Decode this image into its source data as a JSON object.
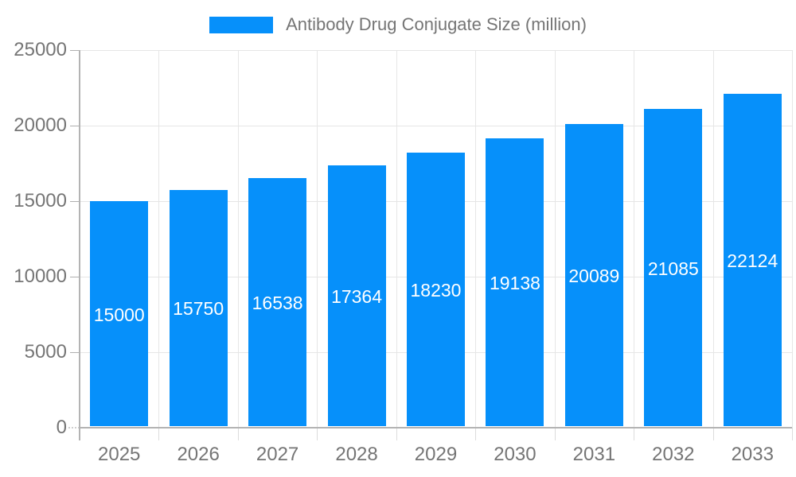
{
  "chart_data": {
    "type": "bar",
    "title": "Antibody Drug Conjugate Size (million)",
    "legend_entries": [
      "Antibody Drug Conjugate Size (million)"
    ],
    "legend_position": "top-center",
    "categories": [
      "2025",
      "2026",
      "2027",
      "2028",
      "2029",
      "2030",
      "2031",
      "2032",
      "2033"
    ],
    "series": [
      {
        "name": "Antibody Drug Conjugate Size (million)",
        "values": [
          15000,
          15750,
          16538,
          17364,
          18230,
          19138,
          20089,
          21085,
          22124
        ]
      }
    ],
    "bar_value_labels": [
      "15000",
      "15750",
      "16538",
      "17364",
      "18230",
      "19138",
      "20089",
      "21085",
      "22124"
    ],
    "xlabel": "",
    "ylabel": "",
    "ylim": [
      0,
      25000
    ],
    "yticks": [
      0,
      5000,
      10000,
      15000,
      20000,
      25000
    ],
    "ytick_labels": [
      "0",
      "5000",
      "10000",
      "15000",
      "20000",
      "25000"
    ],
    "grid": true
  },
  "colors": {
    "bar": "#0690FA",
    "bar_value_text": "#FFFFFF",
    "axis_text": "#757575",
    "legend_text": "#757575",
    "gridline": "#E6E6E6",
    "axis_line": "#B3B3B3",
    "tick_dash": "#AFAFAF",
    "background": "#FFFFFF"
  }
}
